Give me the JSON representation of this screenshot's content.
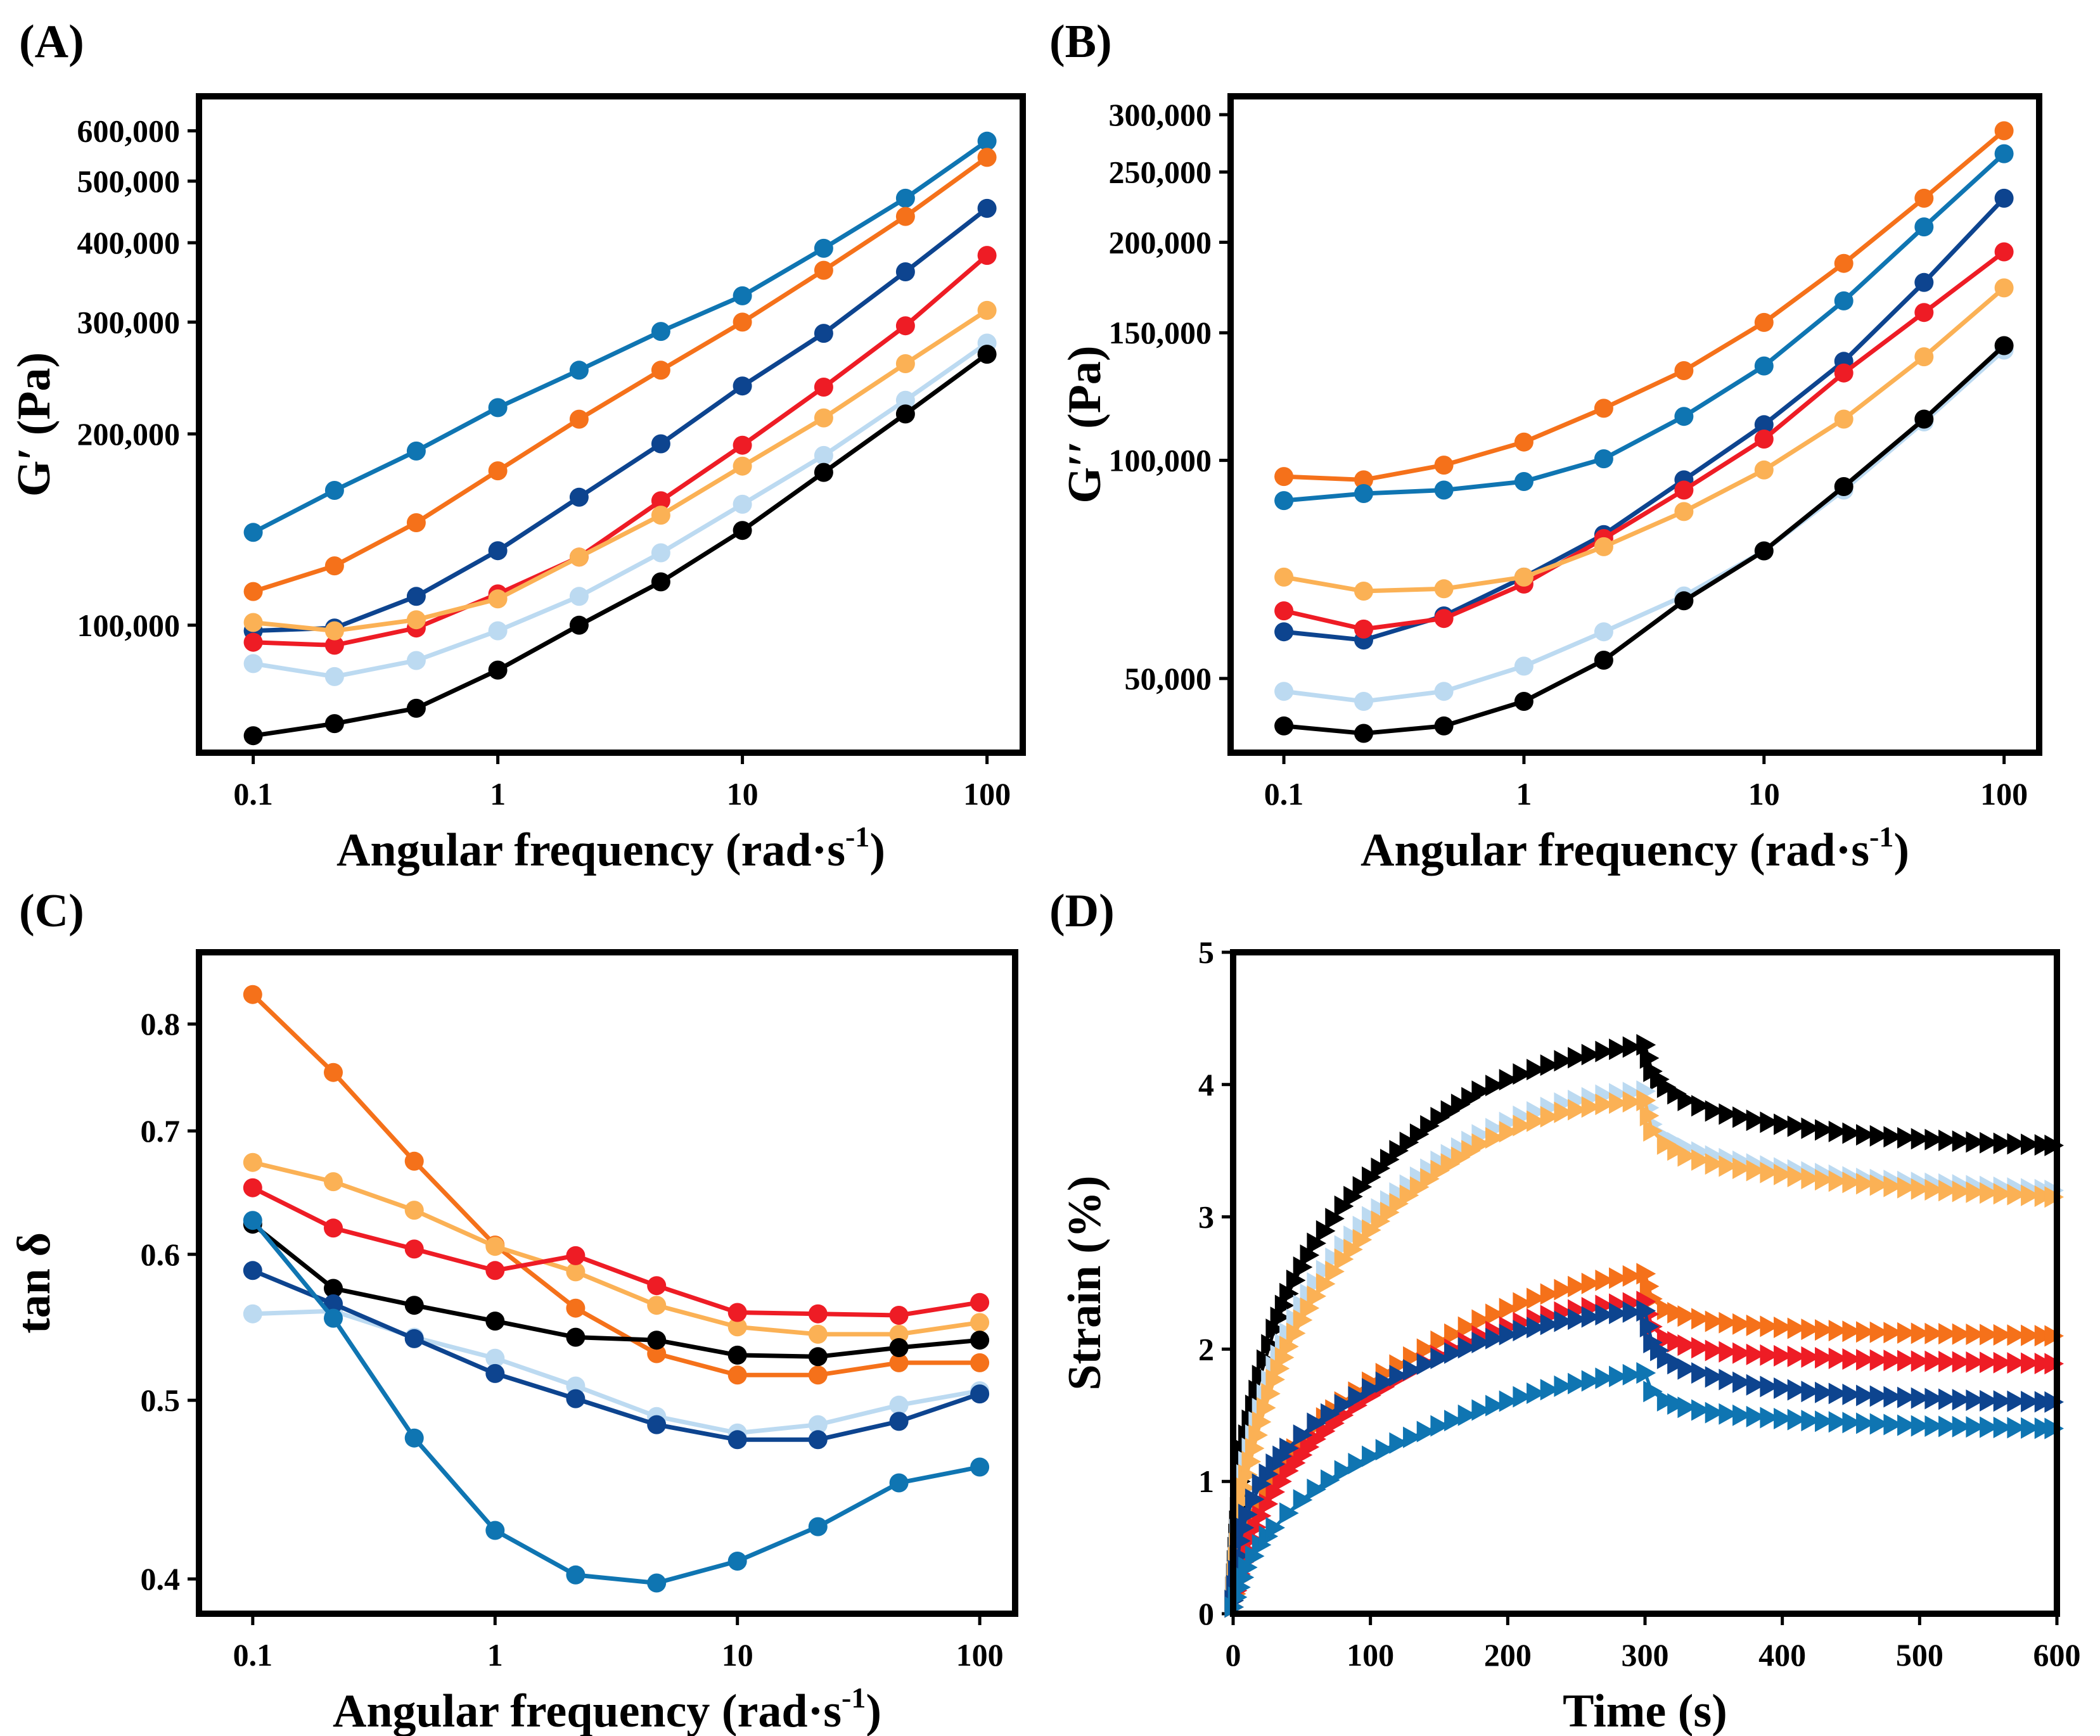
{
  "chart_data": [
    {
      "panel": "(A)",
      "type": "line",
      "x_scale": "log",
      "y_scale": "log",
      "xlabel": "Angular frequency (rad·s",
      "xlabel_sup": "-1",
      "xlabel_close": ")",
      "ylabel": "G′ (Pa)",
      "xlim": [
        0.06,
        140
      ],
      "ylim": [
        63000,
        680000
      ],
      "x_ticks": [
        0.1,
        1,
        10,
        100
      ],
      "x_tick_labels": [
        "0.1",
        "1",
        "10",
        "100"
      ],
      "y_ticks": [
        100000,
        200000,
        300000,
        400000,
        500000,
        600000
      ],
      "y_tick_labels": [
        "100,000",
        "200,000",
        "300,000",
        "400,000",
        "500,000",
        "600,000"
      ],
      "x": [
        0.1,
        0.215,
        0.464,
        1,
        2.15,
        4.64,
        10,
        21.5,
        46.4,
        100
      ],
      "series": [
        {
          "color": "#0f75b2",
          "values": [
            140000,
            163000,
            188000,
            220000,
            252000,
            290000,
            330000,
            392000,
            470000,
            578000
          ]
        },
        {
          "color": "#f5711a",
          "values": [
            113000,
            124000,
            145000,
            175000,
            211000,
            252000,
            300000,
            362000,
            440000,
            545000
          ]
        },
        {
          "color": "#0d448f",
          "values": [
            98000,
            99000,
            111000,
            131000,
            159000,
            193000,
            238000,
            288000,
            360000,
            453000
          ]
        },
        {
          "color": "#ee1c25",
          "values": [
            94000,
            93000,
            99000,
            112000,
            128000,
            157000,
            192000,
            237000,
            296000,
            382000
          ]
        },
        {
          "color": "#fbb155",
          "values": [
            101000,
            98000,
            102000,
            110000,
            128000,
            149000,
            178000,
            212000,
            258000,
            313000
          ]
        },
        {
          "color": "#bcdaf1",
          "values": [
            87000,
            83000,
            88000,
            98000,
            111000,
            130000,
            155000,
            185000,
            226000,
            278000
          ]
        },
        {
          "color": "#000000",
          "values": [
            67000,
            70000,
            74000,
            85000,
            100000,
            117000,
            141000,
            174000,
            215000,
            267000
          ]
        }
      ]
    },
    {
      "panel": "(B)",
      "type": "line",
      "x_scale": "log",
      "y_scale": "log",
      "xlabel": "Angular frequency (rad·s",
      "xlabel_sup": "-1",
      "xlabel_close": ")",
      "ylabel": "G′′ (Pa)",
      "xlim": [
        0.06,
        140
      ],
      "ylim": [
        39500,
        318000
      ],
      "x_ticks": [
        0.1,
        1,
        10,
        100
      ],
      "x_tick_labels": [
        "0.1",
        "1",
        "10",
        "100"
      ],
      "y_ticks": [
        50000,
        100000,
        150000,
        200000,
        250000,
        300000
      ],
      "y_tick_labels": [
        "50,000",
        "100,000",
        "150,000",
        "200,000",
        "250,000",
        "300,000"
      ],
      "x": [
        0.1,
        0.215,
        0.464,
        1,
        2.15,
        4.64,
        10,
        21.5,
        46.4,
        100
      ],
      "series": [
        {
          "color": "#f5711a",
          "values": [
            95000,
            94000,
            98500,
            106000,
            118000,
            133000,
            155000,
            187000,
            230000,
            285000
          ]
        },
        {
          "color": "#0f75b2",
          "values": [
            88000,
            90000,
            91000,
            93500,
            100500,
            115000,
            135000,
            166000,
            210000,
            265000
          ]
        },
        {
          "color": "#0d448f",
          "values": [
            58000,
            56500,
            61000,
            69000,
            79000,
            94000,
            112000,
            137000,
            176000,
            230000
          ]
        },
        {
          "color": "#ee1c25",
          "values": [
            62000,
            58500,
            60500,
            67500,
            78000,
            91000,
            107000,
            132000,
            160000,
            194000
          ]
        },
        {
          "color": "#fbb155",
          "values": [
            69000,
            66000,
            66500,
            69000,
            76000,
            85000,
            97000,
            114000,
            139000,
            173000
          ]
        },
        {
          "color": "#bcdaf1",
          "values": [
            48000,
            46500,
            48000,
            52000,
            58000,
            65000,
            75000,
            91000,
            113000,
            142000
          ]
        },
        {
          "color": "#000000",
          "values": [
            43000,
            42000,
            43000,
            46500,
            53000,
            64000,
            75000,
            92000,
            114000,
            144000
          ]
        }
      ]
    },
    {
      "panel": "(C)",
      "type": "line",
      "x_scale": "log",
      "y_scale": "log",
      "xlabel": "Angular frequency (rad·s",
      "xlabel_sup": "-1",
      "xlabel_close": ")",
      "ylabel": "tan δ",
      "xlim": [
        0.06,
        140
      ],
      "ylim": [
        0.383,
        0.875
      ],
      "x_ticks": [
        0.1,
        1,
        10,
        100
      ],
      "x_tick_labels": [
        "0.1",
        "1",
        "10",
        "100"
      ],
      "y_ticks": [
        0.4,
        0.5,
        0.6,
        0.7,
        0.8
      ],
      "y_tick_labels": [
        "0.4",
        "0.5",
        "0.6",
        "0.7",
        "0.8"
      ],
      "x": [
        0.1,
        0.215,
        0.464,
        1,
        2.15,
        4.64,
        10,
        21.5,
        46.4,
        100
      ],
      "series": [
        {
          "color": "#f5711a",
          "values": [
            0.83,
            0.753,
            0.674,
            0.607,
            0.561,
            0.53,
            0.516,
            0.516,
            0.524,
            0.524
          ]
        },
        {
          "color": "#fbb155",
          "values": [
            0.673,
            0.657,
            0.634,
            0.606,
            0.587,
            0.563,
            0.548,
            0.543,
            0.543,
            0.551
          ]
        },
        {
          "color": "#ee1c25",
          "values": [
            0.652,
            0.62,
            0.604,
            0.588,
            0.599,
            0.577,
            0.558,
            0.557,
            0.556,
            0.565
          ]
        },
        {
          "color": "#000000",
          "values": [
            0.623,
            0.575,
            0.563,
            0.552,
            0.541,
            0.539,
            0.529,
            0.528,
            0.534,
            0.539
          ]
        },
        {
          "color": "#bcdaf1",
          "values": [
            0.557,
            0.559,
            0.541,
            0.527,
            0.509,
            0.49,
            0.48,
            0.485,
            0.497,
            0.506
          ]
        },
        {
          "color": "#0d448f",
          "values": [
            0.588,
            0.564,
            0.54,
            0.517,
            0.501,
            0.485,
            0.476,
            0.476,
            0.487,
            0.504
          ]
        },
        {
          "color": "#0f75b2",
          "values": [
            0.626,
            0.554,
            0.477,
            0.425,
            0.402,
            0.398,
            0.409,
            0.427,
            0.451,
            0.46
          ]
        }
      ]
    },
    {
      "panel": "(D)",
      "type": "scatter",
      "marker": "triangle-right",
      "xlabel": "Time (s)",
      "ylabel": "Strain (%)",
      "xlim": [
        0,
        600
      ],
      "ylim": [
        0,
        5
      ],
      "x_ticks": [
        0,
        100,
        200,
        300,
        400,
        500,
        600
      ],
      "x_tick_labels": [
        "0",
        "100",
        "200",
        "300",
        "400",
        "500",
        "600"
      ],
      "y_ticks": [
        0,
        1,
        2,
        3,
        4,
        5
      ],
      "y_tick_labels": [
        "0",
        "1",
        "2",
        "3",
        "4",
        "5"
      ],
      "creep_time": [
        0,
        5,
        10,
        20,
        30,
        40,
        50,
        60,
        80,
        100,
        120,
        150,
        180,
        210,
        240,
        270,
        300
      ],
      "recovery_time": [
        300,
        305,
        315,
        330,
        350,
        380,
        420,
        460,
        500,
        550,
        600
      ],
      "series": [
        {
          "color": "#000000",
          "creep": [
            0.1,
            1.0,
            1.35,
            1.8,
            2.15,
            2.42,
            2.62,
            2.8,
            3.08,
            3.3,
            3.5,
            3.75,
            3.95,
            4.08,
            4.18,
            4.25,
            4.3
          ],
          "recovery": [
            4.3,
            4.1,
            3.98,
            3.88,
            3.8,
            3.73,
            3.67,
            3.62,
            3.59,
            3.56,
            3.54
          ]
        },
        {
          "color": "#bcdaf1",
          "creep": [
            0.1,
            0.85,
            1.15,
            1.55,
            1.87,
            2.12,
            2.33,
            2.5,
            2.78,
            3.0,
            3.18,
            3.42,
            3.62,
            3.76,
            3.86,
            3.92,
            3.95
          ],
          "recovery": [
            3.95,
            3.7,
            3.6,
            3.52,
            3.46,
            3.4,
            3.34,
            3.29,
            3.26,
            3.23,
            3.2
          ]
        },
        {
          "color": "#fbb155",
          "creep": [
            0.1,
            0.75,
            1.05,
            1.45,
            1.77,
            2.02,
            2.22,
            2.4,
            2.68,
            2.9,
            3.1,
            3.35,
            3.55,
            3.69,
            3.79,
            3.85,
            3.88
          ],
          "recovery": [
            3.88,
            3.65,
            3.55,
            3.46,
            3.4,
            3.35,
            3.29,
            3.25,
            3.21,
            3.18,
            3.15
          ]
        },
        {
          "color": "#f5711a",
          "creep": [
            0.05,
            0.35,
            0.55,
            0.82,
            1.02,
            1.18,
            1.31,
            1.42,
            1.6,
            1.75,
            1.88,
            2.06,
            2.22,
            2.35,
            2.45,
            2.52,
            2.57
          ],
          "recovery": [
            2.57,
            2.38,
            2.3,
            2.25,
            2.21,
            2.18,
            2.15,
            2.13,
            2.12,
            2.11,
            2.1
          ]
        },
        {
          "color": "#ee1c25",
          "creep": [
            0.05,
            0.3,
            0.48,
            0.74,
            0.92,
            1.08,
            1.2,
            1.32,
            1.5,
            1.65,
            1.78,
            1.95,
            2.1,
            2.2,
            2.28,
            2.33,
            2.36
          ],
          "recovery": [
            2.36,
            2.17,
            2.08,
            2.03,
            1.99,
            1.96,
            1.94,
            1.92,
            1.91,
            1.9,
            1.89
          ]
        },
        {
          "color": "#0d448f",
          "creep": [
            0.1,
            0.55,
            0.75,
            0.98,
            1.13,
            1.25,
            1.35,
            1.44,
            1.58,
            1.7,
            1.8,
            1.93,
            2.05,
            2.14,
            2.21,
            2.26,
            2.29
          ],
          "recovery": [
            2.29,
            2.05,
            1.93,
            1.85,
            1.79,
            1.73,
            1.68,
            1.65,
            1.63,
            1.61,
            1.6
          ]
        },
        {
          "color": "#0f75b2",
          "creep": [
            0.05,
            0.2,
            0.35,
            0.52,
            0.65,
            0.76,
            0.86,
            0.94,
            1.08,
            1.19,
            1.29,
            1.42,
            1.54,
            1.64,
            1.72,
            1.78,
            1.82
          ],
          "recovery": [
            1.82,
            1.68,
            1.61,
            1.56,
            1.52,
            1.49,
            1.46,
            1.44,
            1.42,
            1.41,
            1.4
          ]
        }
      ]
    }
  ]
}
